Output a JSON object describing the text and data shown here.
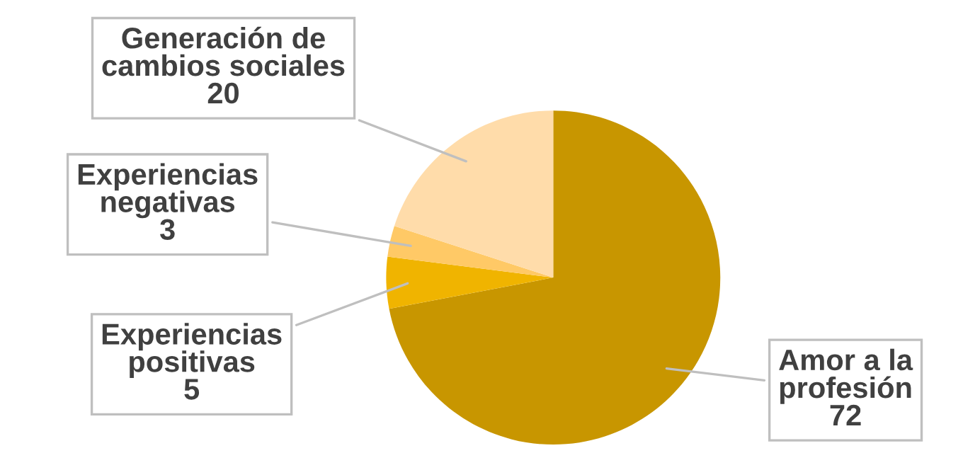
{
  "chart_data": {
    "type": "pie",
    "categories": [
      "Amor a la profesión",
      "Experiencias positivas",
      "Experiencias negativas",
      "Generación de cambios sociales"
    ],
    "values": [
      72,
      5,
      3,
      20
    ],
    "colors": [
      "#c89600",
      "#f0b400",
      "#ffc966",
      "#ffdcaa"
    ],
    "data_labels": true,
    "legend": false
  }
}
